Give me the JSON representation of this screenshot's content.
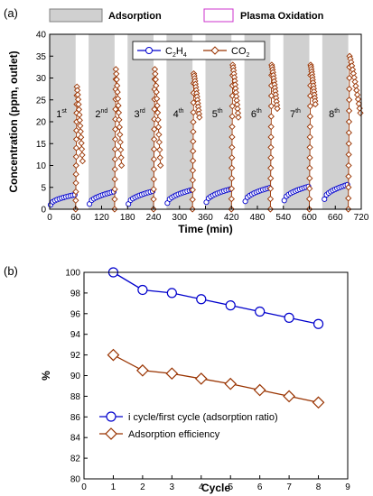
{
  "chart_data": [
    {
      "panel": "(a)",
      "type": "scatter",
      "xlabel": "Time (min)",
      "ylabel": "Concentration (ppm, outlet)",
      "xlim": [
        0,
        720
      ],
      "ylim": [
        0,
        40
      ],
      "xticks": [
        0,
        60,
        120,
        180,
        240,
        300,
        360,
        420,
        480,
        540,
        600,
        660,
        720
      ],
      "yticks": [
        0,
        5,
        10,
        15,
        20,
        25,
        30,
        35,
        40
      ],
      "phase_legend": [
        {
          "label": "Adsorption",
          "fill": "#d0d0d0",
          "stroke": "#808080"
        },
        {
          "label": "Plasma Oxidation",
          "fill": "#ffffff",
          "stroke": "#cc33cc"
        }
      ],
      "adsorption_windows": [
        [
          0,
          60
        ],
        [
          90,
          150
        ],
        [
          180,
          240
        ],
        [
          270,
          330
        ],
        [
          360,
          420
        ],
        [
          450,
          510
        ],
        [
          540,
          600
        ],
        [
          630,
          690
        ]
      ],
      "cycle_labels": [
        {
          "num": "1",
          "sup": "st",
          "x": 15
        },
        {
          "num": "2",
          "sup": "nd",
          "x": 105
        },
        {
          "num": "3",
          "sup": "rd",
          "x": 195
        },
        {
          "num": "4",
          "sup": "th",
          "x": 285
        },
        {
          "num": "5",
          "sup": "th",
          "x": 375
        },
        {
          "num": "6",
          "sup": "th",
          "x": 465
        },
        {
          "num": "7",
          "sup": "th",
          "x": 555
        },
        {
          "num": "8",
          "sup": "th",
          "x": 645
        }
      ],
      "cycle_label_y": 21,
      "series": [
        {
          "name": "C2H4",
          "legend_main": "C",
          "legend_sub1": "2",
          "legend_mid": "H",
          "legend_sub2": "4",
          "color": "#0000cc",
          "marker": "circle",
          "cycles": [
            {
              "start": 2,
              "end": 58,
              "y0": 1.0,
              "y1": 3.3
            },
            {
              "start": 92,
              "end": 148,
              "y0": 1.2,
              "y1": 4.0
            },
            {
              "start": 182,
              "end": 238,
              "y0": 1.2,
              "y1": 4.1
            },
            {
              "start": 272,
              "end": 328,
              "y0": 1.4,
              "y1": 4.4
            },
            {
              "start": 362,
              "end": 418,
              "y0": 1.6,
              "y1": 4.6
            },
            {
              "start": 452,
              "end": 508,
              "y0": 1.8,
              "y1": 4.9
            },
            {
              "start": 542,
              "end": 598,
              "y0": 2.0,
              "y1": 5.2
            },
            {
              "start": 635,
              "end": 688,
              "y0": 2.3,
              "y1": 5.6
            }
          ]
        },
        {
          "name": "CO2",
          "legend_main": "CO",
          "legend_sub1": "2",
          "color": "#993300",
          "marker": "diamond",
          "cycles": [
            {
              "start": 60,
              "peak": 28,
              "end_x": 76,
              "end_y": 11
            },
            {
              "start": 150,
              "peak": 32,
              "end_x": 166,
              "end_y": 10
            },
            {
              "start": 240,
              "peak": 32,
              "end_x": 256,
              "end_y": 10
            },
            {
              "start": 330,
              "peak": 31,
              "end_x": 346,
              "end_y": 21
            },
            {
              "start": 420,
              "peak": 33,
              "end_x": 436,
              "end_y": 21
            },
            {
              "start": 510,
              "peak": 33,
              "end_x": 526,
              "end_y": 23
            },
            {
              "start": 600,
              "peak": 33,
              "end_x": 614,
              "end_y": 24
            },
            {
              "start": 690,
              "peak": 35,
              "end_x": 718,
              "end_y": 22
            }
          ]
        }
      ]
    },
    {
      "panel": "(b)",
      "type": "line",
      "xlabel": "Cycle",
      "ylabel": "%",
      "xlim": [
        0,
        9
      ],
      "ylim": [
        80,
        100
      ],
      "xticks": [
        0,
        1,
        2,
        3,
        4,
        5,
        6,
        7,
        8,
        9
      ],
      "yticks": [
        80,
        82,
        84,
        86,
        88,
        90,
        92,
        94,
        96,
        98,
        100
      ],
      "x": [
        1,
        2,
        3,
        4,
        5,
        6,
        7,
        8
      ],
      "series": [
        {
          "name": "i cycle/first cycle (adsorption ratio)",
          "color": "#0000cc",
          "marker": "circle",
          "values": [
            100.0,
            98.3,
            98.0,
            97.4,
            96.8,
            96.2,
            95.6,
            95.0
          ]
        },
        {
          "name": "Adsorption efficiency",
          "color": "#993300",
          "marker": "diamond",
          "values": [
            92.0,
            90.5,
            90.2,
            89.7,
            89.2,
            88.6,
            88.0,
            87.4
          ]
        }
      ]
    }
  ]
}
